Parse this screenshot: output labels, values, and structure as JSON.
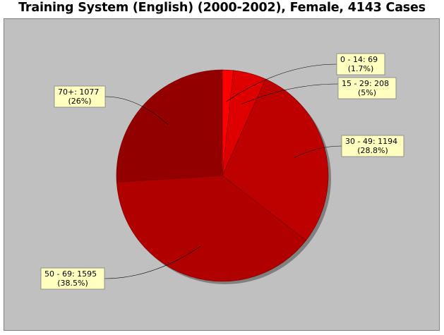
{
  "chart_data": {
    "type": "pie",
    "title": "Training System (English) (2000-2002), Female, 4143 Cases",
    "background": "#c0c0c0",
    "label_box_color": "#ffffc0",
    "slices": [
      {
        "name": "0 - 14",
        "value": 69,
        "percent": "1.7%",
        "label_line1": "0 - 14: 69",
        "label_line2": "(1.7%)",
        "color": "#ff0000"
      },
      {
        "name": "15 - 29",
        "value": 208,
        "percent": "5%",
        "label_line1": "15 - 29: 208",
        "label_line2": "(5%)",
        "color": "#de0000"
      },
      {
        "name": "30 - 49",
        "value": 1194,
        "percent": "28.8%",
        "label_line1": "30 - 49: 1194",
        "label_line2": "(28.8%)",
        "color": "#bd0000"
      },
      {
        "name": "50 - 69",
        "value": 1595,
        "percent": "38.5%",
        "label_line1": "50 - 69: 1595",
        "label_line2": "(38.5%)",
        "color": "#b00000"
      },
      {
        "name": "70+",
        "value": 1077,
        "percent": "26%",
        "label_line1": "70+: 1077",
        "label_line2": "(26%)",
        "color": "#930000"
      }
    ]
  }
}
